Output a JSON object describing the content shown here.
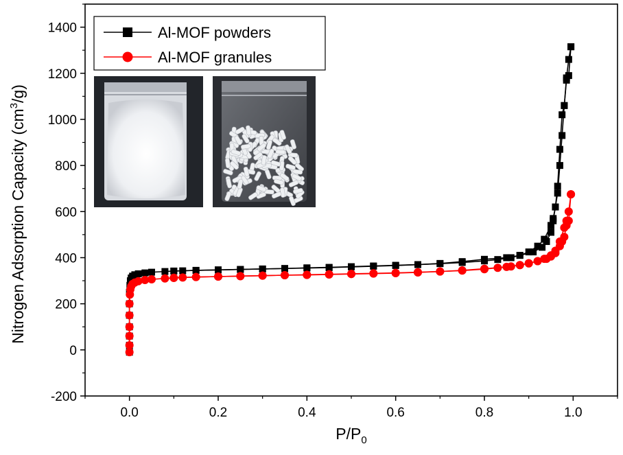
{
  "chart_data": {
    "type": "line",
    "xlabel": "P/P",
    "xlabel_sub": "0",
    "ylabel_pre": "Nitrogen Adsorption Capacity (cm",
    "ylabel_sup": "3",
    "ylabel_post": "/g)",
    "xlim": [
      -0.1,
      1.1
    ],
    "ylim": [
      -200,
      1500
    ],
    "x_ticks": [
      "0.0",
      "0.2",
      "0.4",
      "0.6",
      "0.8",
      "1.0"
    ],
    "y_ticks": [
      "-200",
      "0",
      "200",
      "400",
      "600",
      "800",
      "1000",
      "1200",
      "1400"
    ],
    "x_tick_values": [
      0.0,
      0.2,
      0.4,
      0.6,
      0.8,
      1.0
    ],
    "y_tick_values": [
      -200,
      0,
      200,
      400,
      600,
      800,
      1000,
      1200,
      1400
    ],
    "grid": false,
    "legend_position": "top-left",
    "inset_images": [
      "white powder in clear zip bag",
      "white granules in clear zip bag"
    ],
    "series": [
      {
        "name": "Al-MOF powders",
        "color": "#000000",
        "marker": "square",
        "adsorption": [
          [
            0.0,
            -10
          ],
          [
            0.0,
            20
          ],
          [
            0.0,
            60
          ],
          [
            0.0,
            100
          ],
          [
            0.0,
            150
          ],
          [
            0.0,
            200
          ],
          [
            0.0,
            250
          ],
          [
            0.001,
            280
          ],
          [
            0.002,
            300
          ],
          [
            0.004,
            312
          ],
          [
            0.007,
            320
          ],
          [
            0.012,
            326
          ],
          [
            0.02,
            330
          ],
          [
            0.035,
            334
          ],
          [
            0.05,
            337
          ],
          [
            0.08,
            340
          ],
          [
            0.1,
            342
          ],
          [
            0.12,
            343
          ],
          [
            0.15,
            345
          ],
          [
            0.2,
            347
          ],
          [
            0.25,
            349
          ],
          [
            0.3,
            351
          ],
          [
            0.35,
            353
          ],
          [
            0.4,
            356
          ],
          [
            0.45,
            358
          ],
          [
            0.5,
            361
          ],
          [
            0.55,
            364
          ],
          [
            0.6,
            367
          ],
          [
            0.65,
            370
          ],
          [
            0.7,
            374
          ],
          [
            0.75,
            379
          ],
          [
            0.8,
            386
          ],
          [
            0.83,
            392
          ],
          [
            0.86,
            400
          ],
          [
            0.88,
            410
          ],
          [
            0.9,
            425
          ],
          [
            0.92,
            450
          ],
          [
            0.935,
            480
          ],
          [
            0.95,
            540
          ],
          [
            0.955,
            570
          ],
          [
            0.96,
            620
          ],
          [
            0.965,
            680
          ],
          [
            0.97,
            800
          ],
          [
            0.975,
            930
          ],
          [
            0.98,
            1060
          ],
          [
            0.985,
            1180
          ],
          [
            0.99,
            1260
          ],
          [
            0.995,
            1315
          ]
        ],
        "desorption": [
          [
            0.995,
            1315
          ],
          [
            0.99,
            1190
          ],
          [
            0.985,
            1170
          ],
          [
            0.98,
            1060
          ],
          [
            0.975,
            1020
          ],
          [
            0.97,
            870
          ],
          [
            0.965,
            710
          ],
          [
            0.96,
            620
          ],
          [
            0.955,
            560
          ],
          [
            0.95,
            510
          ],
          [
            0.94,
            470
          ],
          [
            0.93,
            445
          ],
          [
            0.91,
            425
          ],
          [
            0.88,
            410
          ],
          [
            0.85,
            400
          ],
          [
            0.8,
            393
          ],
          [
            0.75,
            383
          ],
          [
            0.7,
            375
          ],
          [
            0.65,
            370
          ],
          [
            0.6,
            366
          ],
          [
            0.55,
            363
          ],
          [
            0.5,
            360
          ],
          [
            0.45,
            357
          ],
          [
            0.4,
            355
          ],
          [
            0.35,
            353
          ],
          [
            0.3,
            351
          ],
          [
            0.25,
            349
          ],
          [
            0.2,
            347
          ],
          [
            0.15,
            345
          ],
          [
            0.1,
            342
          ]
        ]
      },
      {
        "name": "Al-MOF granules",
        "color": "#ff0000",
        "marker": "circle",
        "adsorption": [
          [
            0.0,
            -10
          ],
          [
            0.0,
            20
          ],
          [
            0.0,
            60
          ],
          [
            0.0,
            100
          ],
          [
            0.0,
            150
          ],
          [
            0.0,
            200
          ],
          [
            0.001,
            240
          ],
          [
            0.002,
            262
          ],
          [
            0.004,
            276
          ],
          [
            0.007,
            286
          ],
          [
            0.012,
            292
          ],
          [
            0.02,
            298
          ],
          [
            0.035,
            303
          ],
          [
            0.05,
            306
          ],
          [
            0.08,
            310
          ],
          [
            0.1,
            312
          ],
          [
            0.12,
            314
          ],
          [
            0.15,
            316
          ],
          [
            0.2,
            318
          ],
          [
            0.25,
            320
          ],
          [
            0.3,
            322
          ],
          [
            0.35,
            324
          ],
          [
            0.4,
            326
          ],
          [
            0.45,
            328
          ],
          [
            0.5,
            330
          ],
          [
            0.55,
            332
          ],
          [
            0.6,
            334
          ],
          [
            0.65,
            337
          ],
          [
            0.7,
            340
          ],
          [
            0.75,
            344
          ],
          [
            0.8,
            350
          ],
          [
            0.83,
            356
          ],
          [
            0.86,
            362
          ],
          [
            0.88,
            368
          ],
          [
            0.9,
            376
          ],
          [
            0.92,
            385
          ],
          [
            0.935,
            395
          ],
          [
            0.95,
            410
          ],
          [
            0.96,
            430
          ],
          [
            0.97,
            470
          ],
          [
            0.98,
            530
          ],
          [
            0.985,
            560
          ],
          [
            0.99,
            600
          ],
          [
            0.995,
            675
          ]
        ],
        "desorption": [
          [
            0.995,
            675
          ],
          [
            0.99,
            560
          ],
          [
            0.985,
            540
          ],
          [
            0.98,
            490
          ],
          [
            0.975,
            470
          ],
          [
            0.97,
            450
          ],
          [
            0.96,
            420
          ],
          [
            0.95,
            405
          ],
          [
            0.94,
            395
          ],
          [
            0.92,
            385
          ],
          [
            0.9,
            375
          ],
          [
            0.88,
            368
          ],
          [
            0.85,
            360
          ],
          [
            0.8,
            352
          ],
          [
            0.75,
            345
          ],
          [
            0.7,
            340
          ],
          [
            0.65,
            336
          ],
          [
            0.6,
            333
          ],
          [
            0.55,
            331
          ],
          [
            0.5,
            329
          ],
          [
            0.45,
            327
          ],
          [
            0.4,
            325
          ],
          [
            0.35,
            324
          ],
          [
            0.3,
            322
          ],
          [
            0.25,
            320
          ],
          [
            0.2,
            318
          ],
          [
            0.15,
            316
          ],
          [
            0.1,
            313
          ]
        ]
      }
    ]
  }
}
